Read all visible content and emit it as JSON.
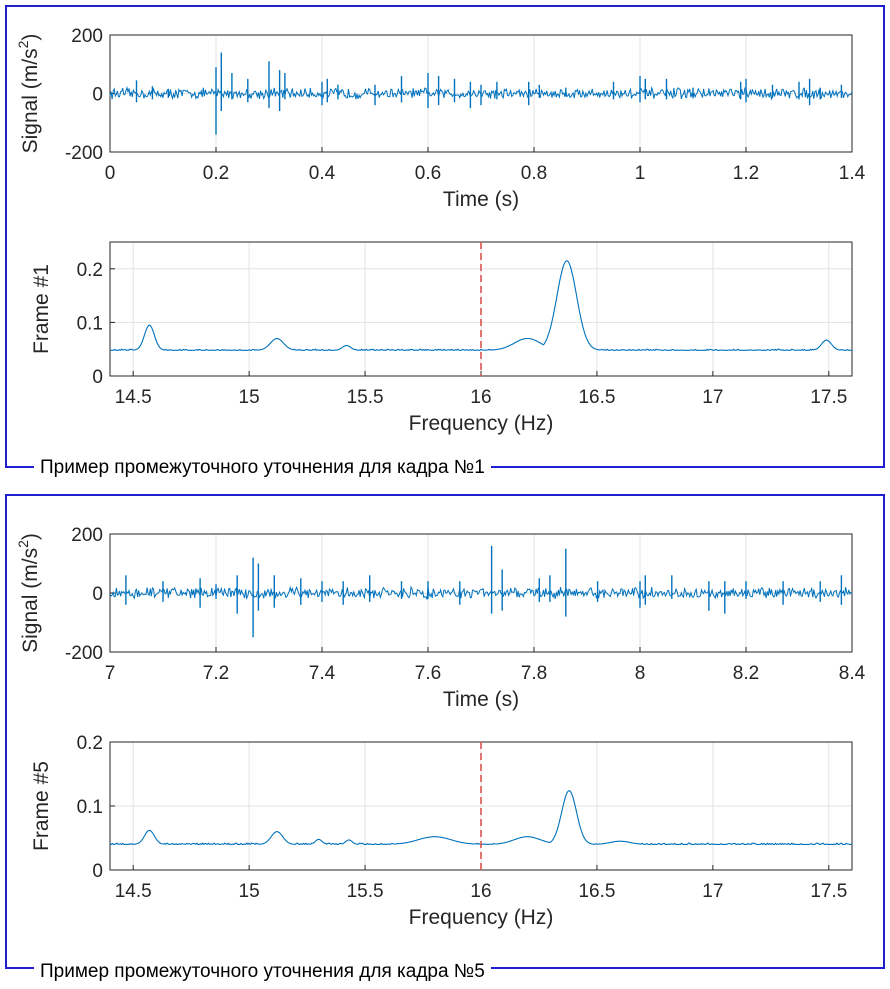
{
  "figure1": {
    "caption": "Пример  промежуточного уточнения для кадра №1",
    "signal_chart": {
      "type": "line",
      "ylabel_main": "Signal (m/s",
      "ylabel_exp": "2",
      "ylabel_close": ")",
      "xlabel": "Time (s)",
      "xlim": [
        0,
        1.4
      ],
      "ylim": [
        -200,
        200
      ],
      "xticks": [
        "0",
        "0.2",
        "0.4",
        "0.6",
        "0.8",
        "1",
        "1.2",
        "1.4"
      ],
      "yticks": [
        "-200",
        "0",
        "200"
      ],
      "grid": true,
      "color": "#0072bd",
      "spikes": [
        [
          0.05,
          -30,
          45
        ],
        [
          0.08,
          -20,
          25
        ],
        [
          0.11,
          -15,
          15
        ],
        [
          0.2,
          -140,
          90
        ],
        [
          0.21,
          -60,
          140
        ],
        [
          0.23,
          -20,
          70
        ],
        [
          0.26,
          -30,
          50
        ],
        [
          0.3,
          -50,
          110
        ],
        [
          0.32,
          -60,
          80
        ],
        [
          0.33,
          -20,
          70
        ],
        [
          0.4,
          -40,
          40
        ],
        [
          0.41,
          -30,
          50
        ],
        [
          0.43,
          -20,
          30
        ],
        [
          0.5,
          -40,
          30
        ],
        [
          0.55,
          -30,
          60
        ],
        [
          0.6,
          -50,
          70
        ],
        [
          0.62,
          -40,
          60
        ],
        [
          0.65,
          -30,
          50
        ],
        [
          0.68,
          -50,
          40
        ],
        [
          0.7,
          -40,
          30
        ],
        [
          0.73,
          -20,
          40
        ],
        [
          0.79,
          -40,
          40
        ],
        [
          0.81,
          -15,
          30
        ],
        [
          0.86,
          -10,
          20
        ],
        [
          0.95,
          -20,
          40
        ],
        [
          1.0,
          -30,
          60
        ],
        [
          1.01,
          -20,
          50
        ],
        [
          1.05,
          -20,
          50
        ],
        [
          1.1,
          -10,
          20
        ],
        [
          1.19,
          -20,
          40
        ],
        [
          1.2,
          -30,
          50
        ],
        [
          1.25,
          -15,
          30
        ],
        [
          1.3,
          -20,
          40
        ],
        [
          1.32,
          -40,
          50
        ],
        [
          1.34,
          -20,
          20
        ],
        [
          1.38,
          -15,
          30
        ]
      ]
    },
    "spectrum_chart": {
      "type": "line",
      "ylabel": "Frame #1",
      "xlabel": "Frequency (Hz)",
      "xlim": [
        14.4,
        17.6
      ],
      "ylim": [
        0,
        0.25
      ],
      "xticks": [
        "14.5",
        "15",
        "15.5",
        "16",
        "16.5",
        "17",
        "17.5"
      ],
      "yticks": [
        "0",
        "0.1",
        "0.2"
      ],
      "grid": true,
      "color": "#0072bd",
      "marker_x": 16,
      "marker_color": "#d9534f",
      "baseline": 0.048,
      "peaks": [
        [
          14.57,
          0.095,
          0.03
        ],
        [
          15.12,
          0.07,
          0.04
        ],
        [
          15.42,
          0.057,
          0.025
        ],
        [
          16.2,
          0.07,
          0.08
        ],
        [
          16.37,
          0.215,
          0.06
        ],
        [
          17.49,
          0.067,
          0.03
        ]
      ]
    }
  },
  "figure2": {
    "caption": "Пример  промежуточного уточнения для кадра №5",
    "signal_chart": {
      "type": "line",
      "ylabel_main": "Signal (m/s",
      "ylabel_exp": "2",
      "ylabel_close": ")",
      "xlabel": "Time (s)",
      "xlim": [
        7,
        8.4
      ],
      "ylim": [
        -200,
        200
      ],
      "xticks": [
        "7",
        "7.2",
        "7.4",
        "7.6",
        "7.8",
        "8",
        "8.2",
        "8.4"
      ],
      "yticks": [
        "-200",
        "0",
        "200"
      ],
      "grid": true,
      "color": "#0072bd",
      "spikes": [
        [
          7.03,
          -40,
          60
        ],
        [
          7.1,
          -30,
          40
        ],
        [
          7.17,
          -50,
          50
        ],
        [
          7.2,
          -20,
          30
        ],
        [
          7.24,
          -70,
          60
        ],
        [
          7.27,
          -150,
          120
        ],
        [
          7.28,
          -60,
          100
        ],
        [
          7.31,
          -50,
          60
        ],
        [
          7.36,
          -40,
          50
        ],
        [
          7.4,
          -30,
          40
        ],
        [
          7.44,
          -40,
          40
        ],
        [
          7.49,
          -30,
          60
        ],
        [
          7.55,
          -20,
          40
        ],
        [
          7.6,
          -20,
          40
        ],
        [
          7.66,
          -40,
          40
        ],
        [
          7.72,
          -70,
          160
        ],
        [
          7.74,
          -60,
          80
        ],
        [
          7.81,
          -30,
          50
        ],
        [
          7.83,
          -30,
          60
        ],
        [
          7.86,
          -80,
          150
        ],
        [
          7.92,
          -30,
          40
        ],
        [
          8.0,
          -50,
          40
        ],
        [
          8.01,
          -40,
          60
        ],
        [
          8.06,
          -20,
          60
        ],
        [
          8.13,
          -60,
          40
        ],
        [
          8.16,
          -70,
          40
        ],
        [
          8.2,
          -20,
          40
        ],
        [
          8.27,
          -40,
          40
        ],
        [
          8.34,
          -30,
          40
        ],
        [
          8.38,
          -40,
          60
        ]
      ]
    },
    "spectrum_chart": {
      "type": "line",
      "ylabel": "Frame #5",
      "xlabel": "Frequency (Hz)",
      "xlim": [
        14.4,
        17.6
      ],
      "ylim": [
        0,
        0.2
      ],
      "xticks": [
        "14.5",
        "15",
        "15.5",
        "16",
        "16.5",
        "17",
        "17.5"
      ],
      "yticks": [
        "0",
        "0.1",
        "0.2"
      ],
      "grid": true,
      "color": "#0072bd",
      "marker_x": 16,
      "marker_color": "#d9534f",
      "baseline": 0.04,
      "peaks": [
        [
          14.57,
          0.062,
          0.03
        ],
        [
          15.12,
          0.06,
          0.035
        ],
        [
          15.3,
          0.048,
          0.02
        ],
        [
          15.43,
          0.047,
          0.02
        ],
        [
          15.8,
          0.052,
          0.1
        ],
        [
          16.2,
          0.052,
          0.08
        ],
        [
          16.38,
          0.124,
          0.045
        ],
        [
          16.6,
          0.045,
          0.06
        ]
      ]
    }
  }
}
